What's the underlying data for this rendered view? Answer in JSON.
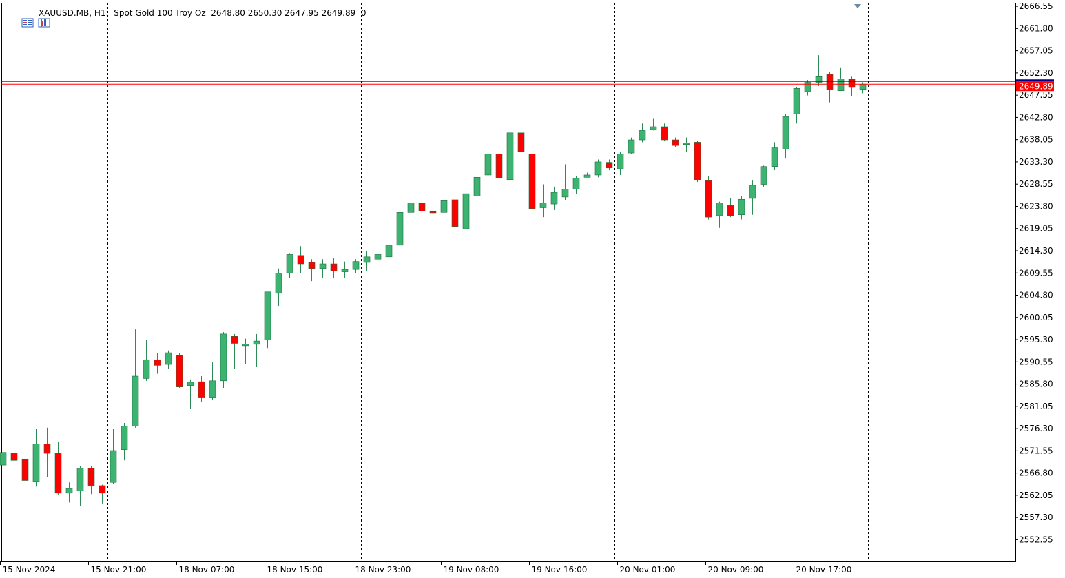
{
  "header": {
    "symbol_text": "XAUUSD.MB, H1:  Spot Gold 100 Troy Oz  2648.80 2650.30 2647.95 2649.89  0"
  },
  "colors": {
    "bull": "#3cb371",
    "bear": "#ff0000",
    "wick": "#2e8b57",
    "bid_line": "#00008b",
    "ask_line": "#ff0000",
    "grid": "#000000",
    "price_tag": "#ff0000"
  },
  "chart_data": {
    "type": "candlestick",
    "symbol": "XAUUSD.MB",
    "timeframe": "H1",
    "description": "Spot Gold 100 Troy Oz",
    "last_bar": {
      "open": 2648.8,
      "high": 2650.3,
      "low": 2647.95,
      "close": 2649.89,
      "volume": 0
    },
    "current_price": "2649.89",
    "bid_price": 2649.89,
    "ask_price": 2650.5,
    "y_ticks": [
      "2666.55",
      "2661.80",
      "2657.05",
      "2652.30",
      "2647.55",
      "2642.80",
      "2638.05",
      "2633.30",
      "2628.55",
      "2623.80",
      "2619.05",
      "2614.30",
      "2609.55",
      "2604.80",
      "2600.05",
      "2595.30",
      "2590.55",
      "2585.80",
      "2581.05",
      "2576.30",
      "2571.55",
      "2566.80",
      "2562.05",
      "2557.30",
      "2552.55"
    ],
    "ylim": [
      2547.9,
      2667.3
    ],
    "x_labels": [
      {
        "bar": 0,
        "label": "15 Nov 2024"
      },
      {
        "bar": 8,
        "label": "15 Nov 21:00"
      },
      {
        "bar": 16,
        "label": "18 Nov 07:00"
      },
      {
        "bar": 24,
        "label": "18 Nov 15:00"
      },
      {
        "bar": 32,
        "label": "18 Nov 23:00"
      },
      {
        "bar": 40,
        "label": "19 Nov 08:00"
      },
      {
        "bar": 48,
        "label": "19 Nov 16:00"
      },
      {
        "bar": 56,
        "label": "20 Nov 01:00"
      },
      {
        "bar": 64,
        "label": "20 Nov 09:00"
      },
      {
        "bar": 72,
        "label": "20 Nov 17:00"
      }
    ],
    "separators_after_bar": [
      9.5,
      32.5,
      55.5,
      78.5
    ],
    "ohlc": [
      [
        2568.5,
        2571.5,
        2568.0,
        2571.2
      ],
      [
        2571.0,
        2571.8,
        2568.5,
        2569.5
      ],
      [
        2569.8,
        2576.3,
        2561.2,
        2565.2
      ],
      [
        2565.0,
        2576.2,
        2563.9,
        2573.0
      ],
      [
        2573.0,
        2576.5,
        2566.0,
        2571.0
      ],
      [
        2571.0,
        2573.5,
        2562.2,
        2562.5
      ],
      [
        2562.5,
        2564.8,
        2560.5,
        2563.5
      ],
      [
        2563.0,
        2568.3,
        2559.8,
        2567.8
      ],
      [
        2567.8,
        2568.3,
        2562.3,
        2564.1
      ],
      [
        2564.1,
        2564.3,
        2560.3,
        2562.5
      ],
      [
        2564.8,
        2576.3,
        2564.5,
        2571.6
      ],
      [
        2571.8,
        2577.5,
        2569.5,
        2576.8
      ],
      [
        2576.8,
        2597.5,
        2576.5,
        2587.5
      ],
      [
        2587.0,
        2595.3,
        2586.5,
        2591.0
      ],
      [
        2591.0,
        2592.5,
        2588.0,
        2589.8
      ],
      [
        2590.0,
        2593.0,
        2589.0,
        2592.5
      ],
      [
        2592.0,
        2592.5,
        2585.0,
        2585.2
      ],
      [
        2585.5,
        2586.8,
        2580.5,
        2586.2
      ],
      [
        2586.3,
        2587.5,
        2582.0,
        2583.0
      ],
      [
        2583.0,
        2590.5,
        2582.5,
        2586.5
      ],
      [
        2586.5,
        2596.9,
        2585.0,
        2596.5
      ],
      [
        2596.0,
        2596.5,
        2589.0,
        2594.5
      ],
      [
        2594.0,
        2595.5,
        2590.0,
        2594.3
      ],
      [
        2594.3,
        2596.5,
        2589.5,
        2595.0
      ],
      [
        2595.2,
        2605.5,
        2593.5,
        2605.5
      ],
      [
        2605.2,
        2610.5,
        2602.5,
        2609.5
      ],
      [
        2609.5,
        2613.8,
        2608.5,
        2613.5
      ],
      [
        2613.3,
        2615.3,
        2609.5,
        2611.5
      ],
      [
        2611.8,
        2612.5,
        2607.8,
        2610.5
      ],
      [
        2610.5,
        2612.5,
        2608.5,
        2611.5
      ],
      [
        2611.5,
        2612.8,
        2608.5,
        2610.0
      ],
      [
        2609.8,
        2612.0,
        2608.5,
        2610.3
      ],
      [
        2610.3,
        2612.5,
        2609.5,
        2612.0
      ],
      [
        2611.8,
        2614.3,
        2610.0,
        2613.0
      ],
      [
        2612.5,
        2614.0,
        2611.0,
        2613.5
      ],
      [
        2613.0,
        2618.0,
        2611.5,
        2615.5
      ],
      [
        2615.5,
        2624.5,
        2615.0,
        2622.5
      ],
      [
        2622.5,
        2625.5,
        2621.0,
        2624.5
      ],
      [
        2624.5,
        2624.8,
        2621.5,
        2622.8
      ],
      [
        2622.8,
        2623.5,
        2621.5,
        2622.4
      ],
      [
        2622.5,
        2626.5,
        2620.8,
        2625.0
      ],
      [
        2625.2,
        2625.5,
        2618.3,
        2619.5
      ],
      [
        2619.0,
        2627.0,
        2618.8,
        2626.5
      ],
      [
        2626.0,
        2633.5,
        2625.5,
        2630.0
      ],
      [
        2630.5,
        2636.5,
        2630.0,
        2635.0
      ],
      [
        2635.0,
        2636.0,
        2629.5,
        2629.8
      ],
      [
        2629.5,
        2639.9,
        2629.0,
        2639.5
      ],
      [
        2639.5,
        2639.8,
        2634.5,
        2635.5
      ],
      [
        2635.0,
        2637.5,
        2623.0,
        2623.3
      ],
      [
        2623.5,
        2628.5,
        2621.5,
        2624.5
      ],
      [
        2624.3,
        2628.0,
        2623.0,
        2626.8
      ],
      [
        2625.8,
        2632.8,
        2625.2,
        2627.5
      ],
      [
        2627.5,
        2630.2,
        2626.5,
        2629.8
      ],
      [
        2630.0,
        2631.0,
        2630.0,
        2630.5
      ],
      [
        2630.5,
        2633.8,
        2630.0,
        2633.3
      ],
      [
        2633.2,
        2633.8,
        2631.5,
        2632.0
      ],
      [
        2631.8,
        2635.5,
        2630.5,
        2635.0
      ],
      [
        2635.2,
        2638.5,
        2635.0,
        2638.0
      ],
      [
        2638.0,
        2641.5,
        2637.5,
        2640.0
      ],
      [
        2640.2,
        2642.5,
        2640.0,
        2640.8
      ],
      [
        2640.8,
        2641.5,
        2637.8,
        2638.0
      ],
      [
        2638.0,
        2638.5,
        2636.5,
        2636.8
      ],
      [
        2637.0,
        2638.5,
        2635.5,
        2637.3
      ],
      [
        2637.5,
        2637.8,
        2629.0,
        2629.5
      ],
      [
        2629.3,
        2630.2,
        2621.0,
        2621.5
      ],
      [
        2621.8,
        2624.8,
        2619.2,
        2624.5
      ],
      [
        2624.0,
        2625.5,
        2621.5,
        2621.8
      ],
      [
        2622.0,
        2626.0,
        2621.0,
        2625.3
      ],
      [
        2625.5,
        2629.3,
        2622.0,
        2628.3
      ],
      [
        2628.5,
        2632.5,
        2628.0,
        2632.3
      ],
      [
        2632.3,
        2637.5,
        2631.5,
        2636.3
      ],
      [
        2636.0,
        2643.5,
        2634.0,
        2643.0
      ],
      [
        2643.5,
        2649.3,
        2641.5,
        2649.0
      ],
      [
        2648.3,
        2650.8,
        2647.5,
        2650.3
      ],
      [
        2650.3,
        2656.1,
        2649.5,
        2651.5
      ],
      [
        2652.0,
        2652.5,
        2646.0,
        2648.8
      ],
      [
        2648.5,
        2653.5,
        2648.5,
        2651.0
      ],
      [
        2651.0,
        2651.5,
        2647.3,
        2649.2
      ],
      [
        2648.8,
        2650.3,
        2647.95,
        2649.89
      ]
    ]
  }
}
